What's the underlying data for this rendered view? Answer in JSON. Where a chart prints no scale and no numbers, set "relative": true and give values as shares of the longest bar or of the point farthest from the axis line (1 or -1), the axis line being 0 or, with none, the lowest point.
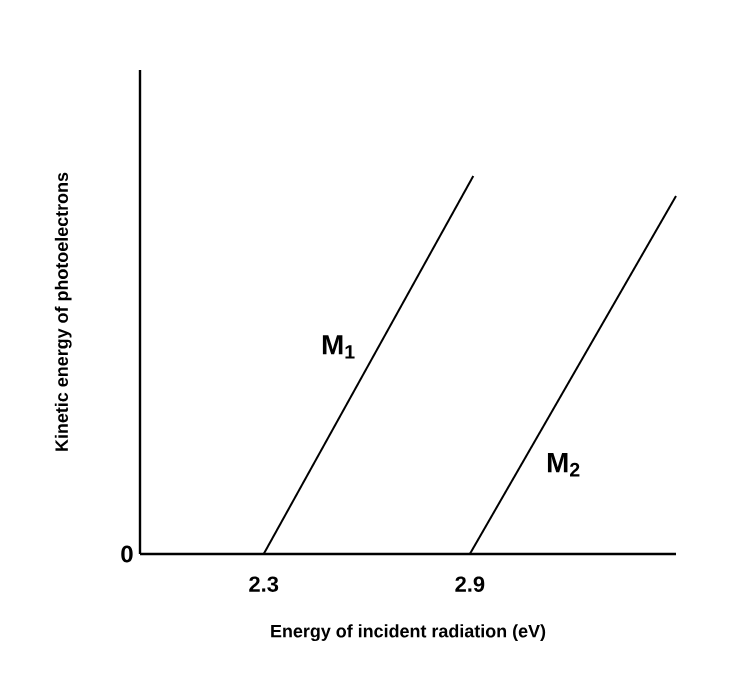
{
  "chart_data": {
    "type": "line",
    "relative": true,
    "xlabel": "Energy of incident radiation (eV)",
    "ylabel": "Kinetic energy of photoelectrons",
    "xlim": [
      1.94,
      3.5
    ],
    "xticks": [
      2.3,
      2.9
    ],
    "annotations": [
      "0"
    ],
    "grid": false,
    "legend": false,
    "marker": "none",
    "line_style": "solid",
    "series": [
      {
        "name": "M$_{1}$",
        "color": "#000000",
        "x": [
          2.3,
          2.91
        ],
        "values": [
          0,
          1
        ]
      },
      {
        "name": "M$_{2}$",
        "color": "#000000",
        "x": [
          2.9,
          3.5
        ],
        "values": [
          0,
          0.947
        ]
      }
    ]
  }
}
